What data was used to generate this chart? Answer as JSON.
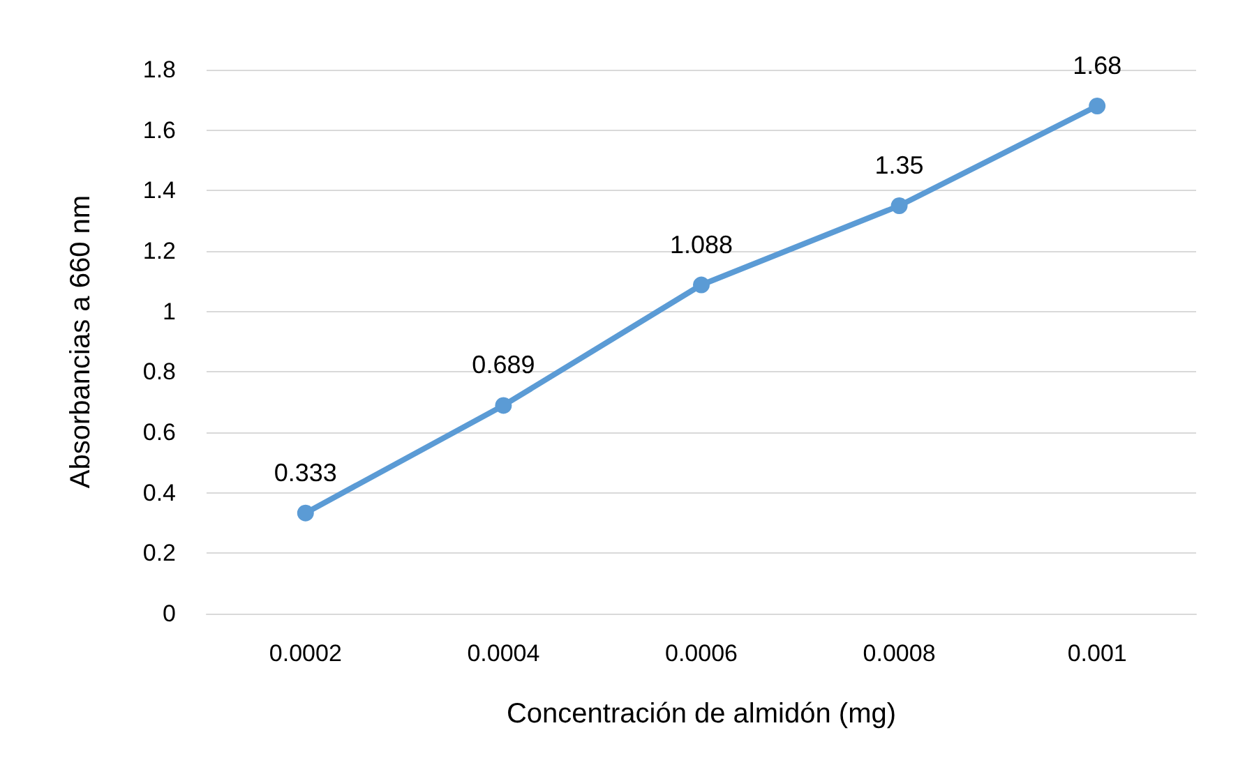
{
  "chart_data": {
    "type": "line",
    "xlabel": "Concentración de almidón (mg)",
    "ylabel": "Absorbancias a 660 nm",
    "categories": [
      "0.0002",
      "0.0004",
      "0.0006",
      "0.0008",
      "0.001"
    ],
    "series": [
      {
        "color": "#5b9bd5",
        "values": [
          0.333,
          0.689,
          1.088,
          1.35,
          1.68
        ]
      }
    ],
    "ylim": [
      0,
      1.8
    ],
    "yticks": [
      0,
      0.2,
      0.4,
      0.6,
      0.8,
      1,
      1.2,
      1.4,
      1.6,
      1.8
    ],
    "grid": "y",
    "marker": "circle",
    "line_style": "solid",
    "data_labels": true
  }
}
